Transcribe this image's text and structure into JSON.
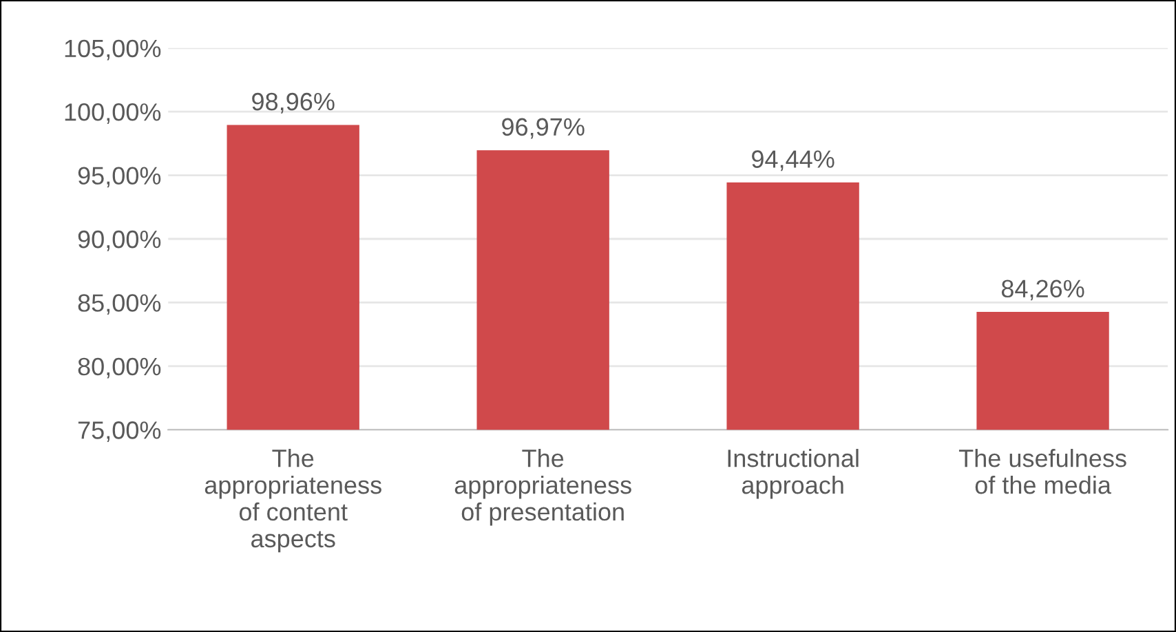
{
  "chart_data": {
    "type": "bar",
    "categories": [
      "The\nappropriateness\nof content\naspects",
      "The\nappropriateness\nof presentation",
      "Instructional\napproach",
      "The usefulness\nof the media"
    ],
    "values": [
      98.96,
      96.97,
      94.44,
      84.26
    ],
    "value_labels": [
      "98,96%",
      "96,97%",
      "94,44%",
      "84,26%"
    ],
    "color": "#d0494b",
    "ylim": [
      75,
      105
    ],
    "yticks": [
      {
        "value": 75,
        "label": "75,00%"
      },
      {
        "value": 80,
        "label": "80,00%"
      },
      {
        "value": 85,
        "label": "85,00%"
      },
      {
        "value": 90,
        "label": "90,00%"
      },
      {
        "value": 95,
        "label": "95,00%"
      },
      {
        "value": 100,
        "label": "100,00%"
      },
      {
        "value": 105,
        "label": "105,00%"
      }
    ],
    "grid": "y",
    "legend": false
  }
}
